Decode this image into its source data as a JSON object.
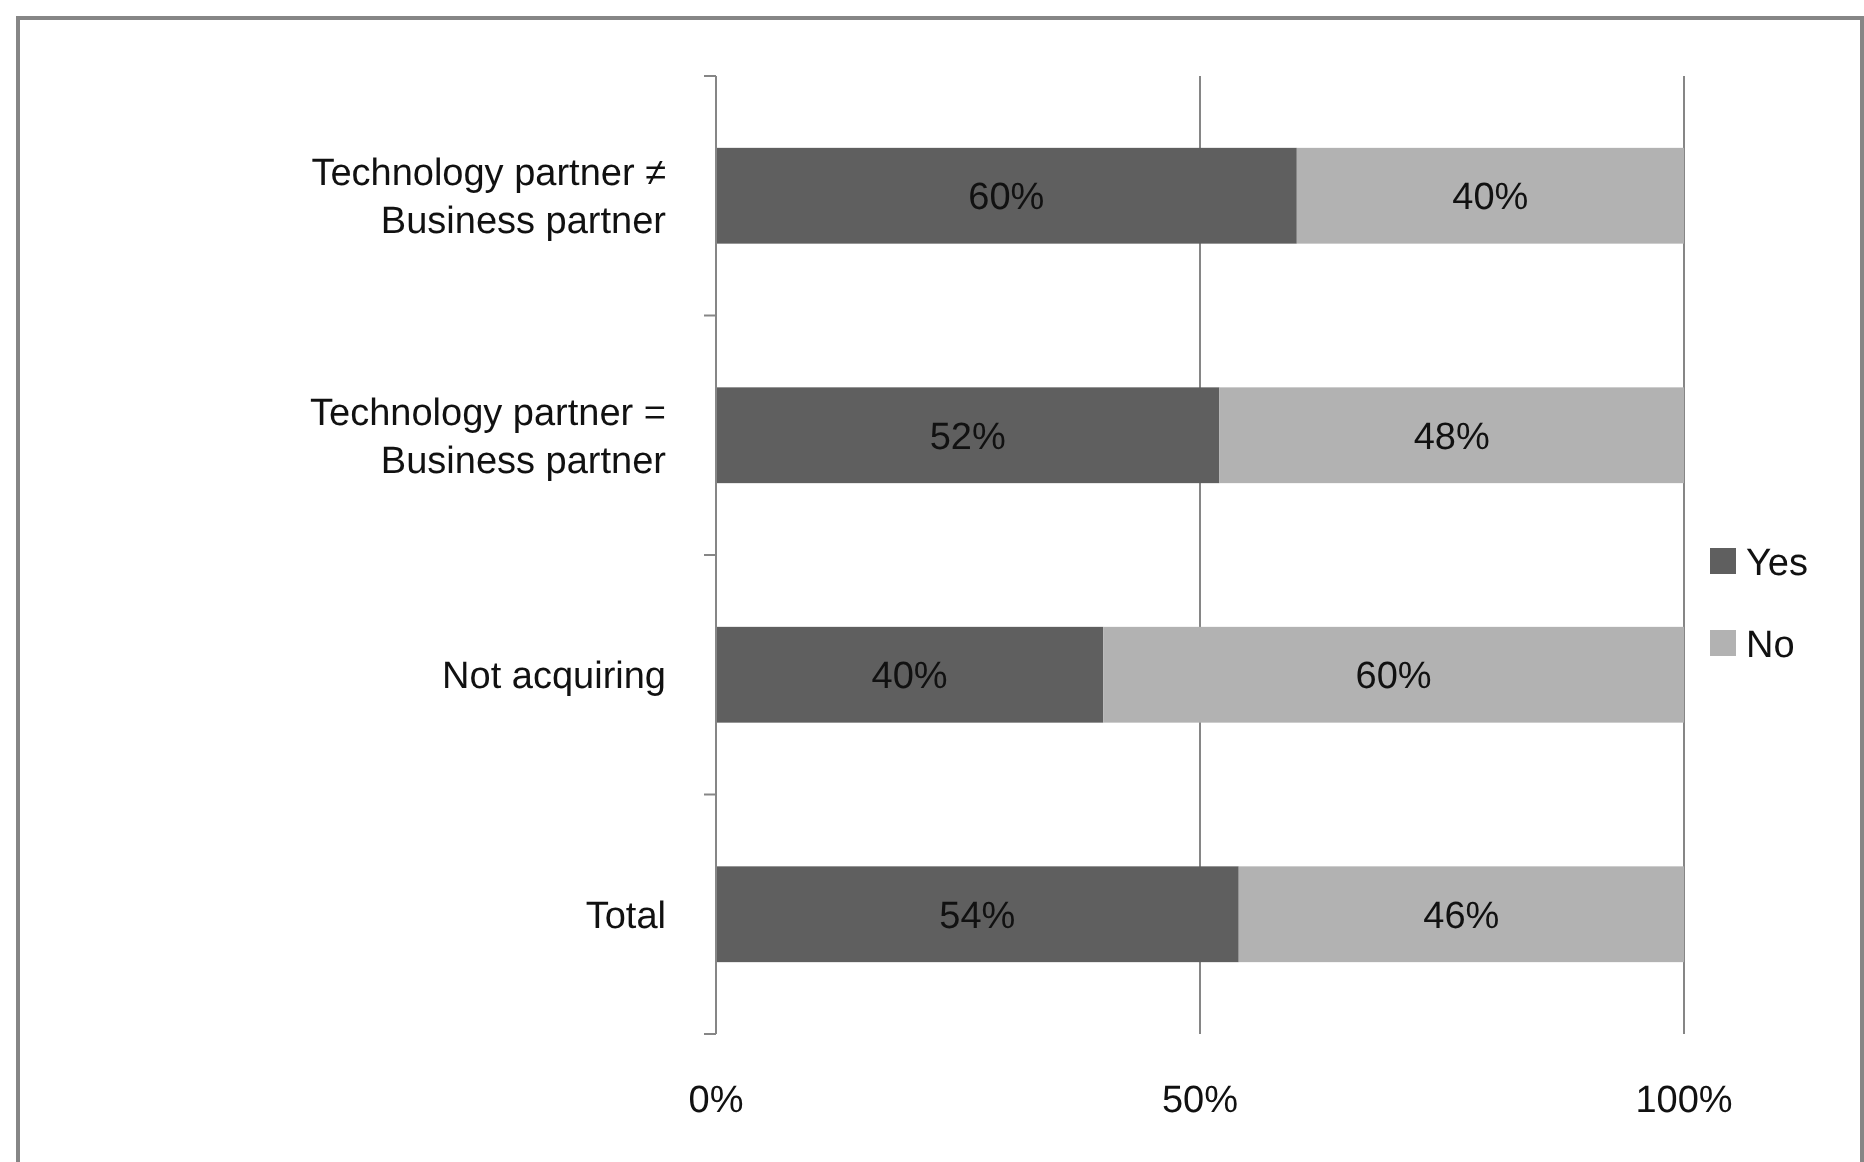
{
  "chart_data": {
    "type": "bar",
    "orientation": "horizontal",
    "stacked": true,
    "categories": [
      "Technology partner ≠ Business partner",
      "Technology partner = Business partner",
      "Not acquiring",
      "Total"
    ],
    "series": [
      {
        "name": "Yes",
        "color": "#5f5f5f",
        "values": [
          60,
          52,
          40,
          54
        ],
        "value_labels": [
          "60%",
          "52%",
          "40%",
          "54%"
        ]
      },
      {
        "name": "No",
        "color": "#b2b2b2",
        "values": [
          40,
          48,
          60,
          46
        ],
        "value_labels": [
          "40%",
          "48%",
          "60%",
          "46%"
        ]
      }
    ],
    "xlim": [
      0,
      100
    ],
    "xticks": [
      {
        "value": 0,
        "label": "0%"
      },
      {
        "value": 50,
        "label": "50%"
      },
      {
        "value": 100,
        "label": "100%"
      }
    ],
    "grid": "x",
    "legend": "right"
  }
}
